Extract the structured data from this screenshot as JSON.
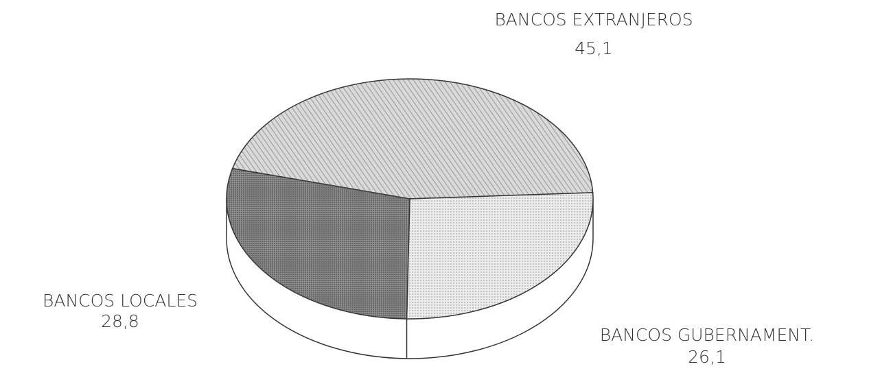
{
  "chart_data": {
    "type": "pie",
    "categories": [
      "BANCOS EXTRANJEROS",
      "BANCOS GUBERNAMENT.",
      "BANCOS LOCALES"
    ],
    "values": [
      45.1,
      26.1,
      28.8
    ],
    "value_labels": [
      "45,1",
      "26,1",
      "28,8"
    ],
    "colors": [
      "#d9d9d9",
      "#ececec",
      "#8c8c8c"
    ]
  }
}
